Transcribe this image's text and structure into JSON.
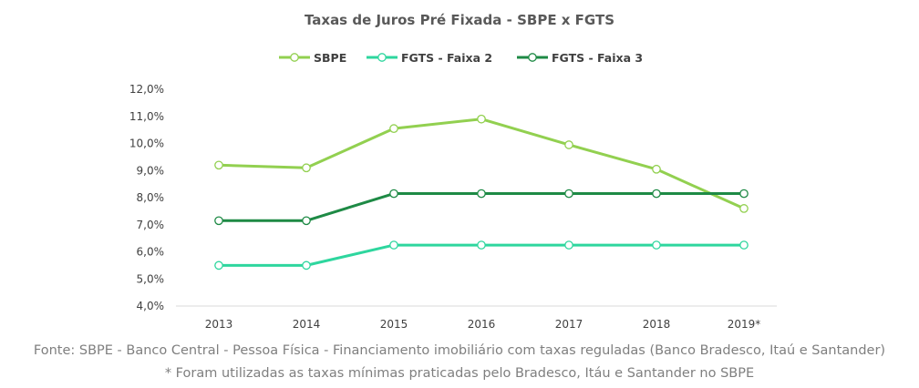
{
  "chart_data": {
    "type": "line",
    "title": "Taxas de Juros Pré Fixada - SBPE x FGTS",
    "categories": [
      "2013",
      "2014",
      "2015",
      "2016",
      "2017",
      "2018",
      "2019*"
    ],
    "series": [
      {
        "name": "SBPE",
        "color": "#92d050",
        "values": [
          9.2,
          9.1,
          10.55,
          10.9,
          9.95,
          9.05,
          7.6
        ]
      },
      {
        "name": "FGTS - Faixa 2",
        "color": "#2ed69e",
        "values": [
          5.5,
          5.5,
          6.25,
          6.25,
          6.25,
          6.25,
          6.25
        ]
      },
      {
        "name": "FGTS - Faixa 3",
        "color": "#1e8a45",
        "values": [
          7.15,
          7.15,
          8.15,
          8.15,
          8.15,
          8.15,
          8.15
        ]
      }
    ],
    "yticks": [
      "4,0%",
      "5,0%",
      "6,0%",
      "7,0%",
      "8,0%",
      "9,0%",
      "10,0%",
      "11,0%",
      "12,0%"
    ],
    "ylim": [
      4,
      12
    ],
    "legend_position": "top",
    "grid": false
  },
  "footer": {
    "source": "Fonte: SBPE - Banco Central - Pessoa Física - Financiamento imobiliário com taxas reguladas (Banco Bradesco, Itaú e Santander)",
    "note": "* Foram utilizadas as taxas mínimas praticadas pelo Bradesco, Itáu e Santander no SBPE"
  }
}
